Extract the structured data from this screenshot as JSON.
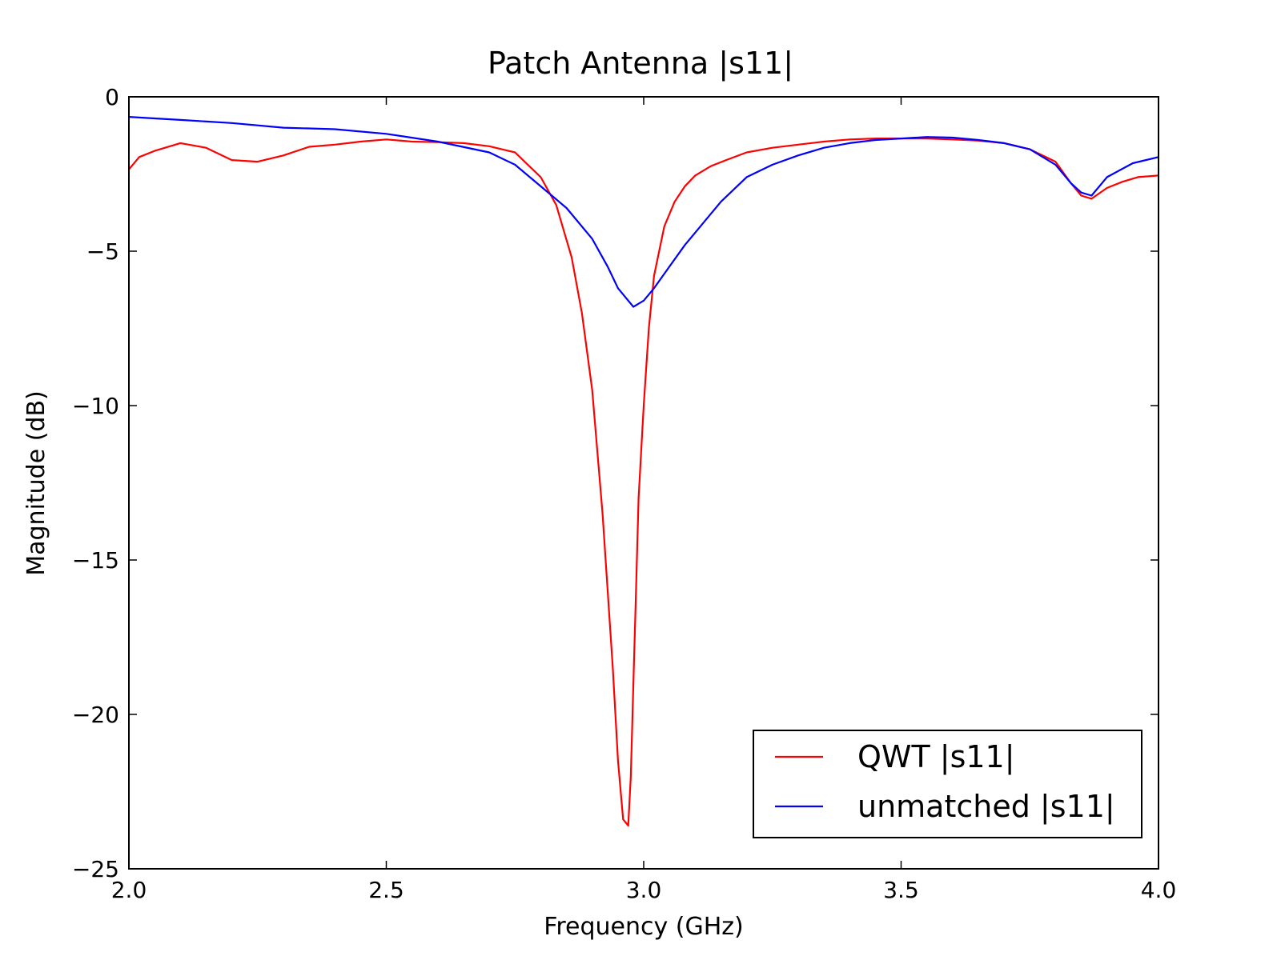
{
  "chart_data": {
    "type": "line",
    "title": "Patch Antenna |s11|",
    "xlabel": "Frequency (GHz)",
    "ylabel": "Magnitude (dB)",
    "xlim": [
      2.0,
      4.0
    ],
    "ylim": [
      -25,
      0
    ],
    "xticks": [
      2.0,
      2.5,
      3.0,
      3.5,
      4.0
    ],
    "xtick_labels": [
      "2.0",
      "2.5",
      "3.0",
      "3.5",
      "4.0"
    ],
    "yticks": [
      0,
      -5,
      -10,
      -15,
      -20,
      -25
    ],
    "ytick_labels": [
      "0",
      "−5",
      "−10",
      "−15",
      "−20",
      "−25"
    ],
    "grid": false,
    "legend_position": "bottom-right",
    "series": [
      {
        "name": "QWT |s11|",
        "color": "#ff0000",
        "x": [
          2.0,
          2.02,
          2.05,
          2.1,
          2.15,
          2.2,
          2.25,
          2.3,
          2.35,
          2.4,
          2.45,
          2.5,
          2.55,
          2.6,
          2.65,
          2.7,
          2.75,
          2.8,
          2.83,
          2.86,
          2.88,
          2.9,
          2.92,
          2.94,
          2.95,
          2.96,
          2.97,
          2.975,
          2.98,
          2.985,
          2.99,
          3.0,
          3.01,
          3.02,
          3.04,
          3.06,
          3.08,
          3.1,
          3.13,
          3.16,
          3.2,
          3.25,
          3.3,
          3.35,
          3.4,
          3.45,
          3.5,
          3.55,
          3.6,
          3.65,
          3.7,
          3.75,
          3.8,
          3.83,
          3.85,
          3.87,
          3.9,
          3.93,
          3.96,
          4.0
        ],
        "y": [
          -2.35,
          -1.95,
          -1.75,
          -1.5,
          -1.65,
          -2.05,
          -2.1,
          -1.9,
          -1.62,
          -1.55,
          -1.45,
          -1.38,
          -1.45,
          -1.47,
          -1.5,
          -1.6,
          -1.8,
          -2.6,
          -3.5,
          -5.2,
          -7.0,
          -9.5,
          -13.5,
          -18.5,
          -21.5,
          -23.4,
          -23.6,
          -22.0,
          -19.0,
          -16.0,
          -13.0,
          -10.0,
          -7.5,
          -5.8,
          -4.2,
          -3.4,
          -2.9,
          -2.55,
          -2.25,
          -2.05,
          -1.8,
          -1.65,
          -1.55,
          -1.45,
          -1.38,
          -1.35,
          -1.35,
          -1.35,
          -1.38,
          -1.42,
          -1.5,
          -1.7,
          -2.1,
          -2.8,
          -3.2,
          -3.3,
          -2.95,
          -2.75,
          -2.6,
          -2.55
        ]
      },
      {
        "name": "unmatched |s11|",
        "color": "#0000ff",
        "x": [
          2.0,
          2.1,
          2.2,
          2.3,
          2.4,
          2.5,
          2.6,
          2.7,
          2.75,
          2.8,
          2.85,
          2.9,
          2.93,
          2.95,
          2.97,
          2.98,
          3.0,
          3.02,
          3.05,
          3.08,
          3.1,
          3.15,
          3.2,
          3.25,
          3.3,
          3.35,
          3.4,
          3.45,
          3.5,
          3.55,
          3.6,
          3.65,
          3.7,
          3.75,
          3.8,
          3.83,
          3.85,
          3.87,
          3.9,
          3.95,
          4.0
        ],
        "y": [
          -0.65,
          -0.75,
          -0.85,
          -1.0,
          -1.05,
          -1.2,
          -1.45,
          -1.8,
          -2.2,
          -2.9,
          -3.6,
          -4.6,
          -5.5,
          -6.2,
          -6.6,
          -6.8,
          -6.6,
          -6.2,
          -5.5,
          -4.8,
          -4.4,
          -3.4,
          -2.6,
          -2.2,
          -1.9,
          -1.65,
          -1.5,
          -1.4,
          -1.35,
          -1.3,
          -1.32,
          -1.4,
          -1.5,
          -1.7,
          -2.2,
          -2.8,
          -3.1,
          -3.2,
          -2.6,
          -2.15,
          -1.95
        ]
      }
    ]
  }
}
